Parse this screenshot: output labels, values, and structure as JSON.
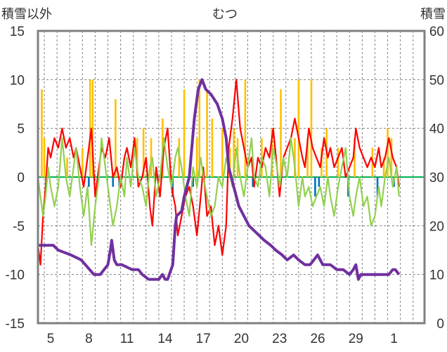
{
  "chart_data": {
    "type": "line",
    "title": "むつ",
    "left_axis_label": "積雪以外",
    "right_axis_label": "積雪",
    "ylim_left": [
      -15,
      15
    ],
    "ylim_right": [
      0,
      60
    ],
    "yticks_left": [
      "15",
      "10",
      "5",
      "0",
      "-5",
      "-10",
      "-15"
    ],
    "yticks_right": [
      "60",
      "50",
      "40",
      "30",
      "20",
      "10",
      "0"
    ],
    "x_days_range": [
      4.0,
      2.4
    ],
    "xticks": [
      "5",
      "8",
      "11",
      "14",
      "17",
      "20",
      "23",
      "26",
      "29",
      "1"
    ],
    "grid": true,
    "series": [
      {
        "color": "#ff0000",
        "axis": "left",
        "x": [
          4.0,
          4.2,
          4.4,
          4.6,
          4.8,
          5.0,
          5.3,
          5.6,
          5.9,
          6.2,
          6.5,
          6.8,
          7.0,
          7.3,
          7.6,
          7.9,
          8.2,
          8.5,
          8.8,
          9.0,
          9.3,
          9.6,
          9.9,
          10.2,
          10.5,
          10.8,
          11.0,
          11.3,
          11.6,
          11.9,
          12.2,
          12.5,
          12.8,
          13.0,
          13.3,
          13.6,
          13.9,
          14.2,
          14.5,
          14.8,
          15.0,
          15.3,
          15.6,
          15.9,
          16.2,
          16.5,
          16.8,
          17.0,
          17.3,
          17.6,
          17.9,
          18.2,
          18.5,
          18.8,
          19.0,
          19.3,
          19.6,
          19.9,
          20.2,
          20.5,
          20.8,
          21.0,
          21.3,
          21.6,
          21.9,
          22.2,
          22.5,
          22.8,
          23.0,
          23.3,
          23.6,
          23.9,
          24.2,
          24.5,
          24.8,
          25.0,
          25.3,
          25.6,
          25.9,
          26.2,
          26.5,
          26.8,
          27.0,
          27.3,
          27.6,
          27.9,
          28.2,
          28.5,
          28.8,
          29.0,
          29.3,
          29.6,
          29.9,
          30.2,
          30.5,
          30.8,
          31.0,
          31.3,
          31.6,
          31.9,
          32.2,
          32.4
        ],
        "values": [
          -7,
          -9,
          -4,
          -1,
          3,
          2,
          4,
          3,
          5,
          3,
          4,
          2,
          3,
          1,
          -1,
          2,
          5,
          -2,
          1,
          3,
          2,
          4,
          0,
          1,
          -1,
          2,
          3,
          1,
          4,
          -1,
          0,
          2,
          -3,
          -5,
          1,
          -2,
          3,
          5,
          -1,
          -3,
          -6,
          -4,
          -2,
          -1,
          -3,
          -6,
          -2,
          1,
          -4,
          -3,
          -7,
          -5,
          -8,
          -5,
          3,
          6,
          10,
          5,
          3,
          1,
          2,
          -1,
          2,
          1,
          3,
          2,
          5,
          1,
          -2,
          2,
          3,
          4,
          6,
          4,
          2,
          1,
          5,
          3,
          2,
          1,
          4,
          2,
          3,
          1,
          2,
          3,
          0,
          1,
          2,
          5,
          3,
          2,
          1,
          2,
          1,
          3,
          1,
          2,
          4,
          2,
          1,
          -1
        ]
      },
      {
        "color": "#92d050",
        "axis": "left",
        "x": [
          4.0,
          4.2,
          4.4,
          4.6,
          4.8,
          5.0,
          5.3,
          5.6,
          5.9,
          6.2,
          6.5,
          6.8,
          7.0,
          7.3,
          7.6,
          7.9,
          8.2,
          8.5,
          8.8,
          9.0,
          9.3,
          9.6,
          9.9,
          10.2,
          10.5,
          10.8,
          11.0,
          11.3,
          11.6,
          11.9,
          12.2,
          12.5,
          12.8,
          13.0,
          13.3,
          13.6,
          13.9,
          14.2,
          14.5,
          14.8,
          15.0,
          15.3,
          15.6,
          15.9,
          16.2,
          16.5,
          16.8,
          17.0,
          17.3,
          17.6,
          17.9,
          18.2,
          18.5,
          18.8,
          19.0,
          19.3,
          19.6,
          19.9,
          20.2,
          20.5,
          20.8,
          21.0,
          21.3,
          21.6,
          21.9,
          22.2,
          22.5,
          22.8,
          23.0,
          23.3,
          23.6,
          23.9,
          24.2,
          24.5,
          24.8,
          25.0,
          25.3,
          25.6,
          25.9,
          26.2,
          26.5,
          26.8,
          27.0,
          27.3,
          27.6,
          27.9,
          28.2,
          28.5,
          28.8,
          29.0,
          29.3,
          29.6,
          29.9,
          30.2,
          30.5,
          30.8,
          31.0,
          31.3,
          31.6,
          31.9,
          32.2,
          32.4
        ],
        "values": [
          0,
          -2,
          -4,
          -2,
          1,
          -1,
          -3,
          -1,
          4,
          0,
          -2,
          1,
          3,
          -1,
          -4,
          -1,
          -7,
          -3,
          0,
          4,
          1,
          -2,
          -5,
          -3,
          0,
          -2,
          2,
          -1,
          3,
          0,
          -1,
          -3,
          1,
          2,
          -2,
          0,
          4,
          1,
          -1,
          2,
          3,
          1,
          -2,
          -4,
          1,
          -1,
          2,
          0,
          -2,
          -4,
          -3,
          0,
          -1,
          2,
          1,
          -1,
          3,
          0,
          -2,
          1,
          4,
          0,
          -1,
          2,
          1,
          -2,
          3,
          1,
          -1,
          2,
          0,
          4,
          1,
          -3,
          0,
          -2,
          -1,
          -3,
          -2,
          -1,
          -3,
          0,
          -2,
          -4,
          -1,
          1,
          3,
          -2,
          -4,
          -2,
          0,
          -3,
          -2,
          -5,
          -4,
          -1,
          -3,
          0,
          2,
          -1,
          1,
          -2
        ]
      },
      {
        "color": "#7030a0",
        "axis": "right",
        "x": [
          4.0,
          5.2,
          5.6,
          6.6,
          7.4,
          8.4,
          8.9,
          9.2,
          9.5,
          9.7,
          9.8,
          10.0,
          10.2,
          10.6,
          11.4,
          11.9,
          12.2,
          12.7,
          13.5,
          13.8,
          14.0,
          14.2,
          14.6,
          14.8,
          14.9,
          15.3,
          15.5,
          15.9,
          16.3,
          16.6,
          16.9,
          17.2,
          17.6,
          18.1,
          18.5,
          18.8,
          19.0,
          19.4,
          19.8,
          20.2,
          20.6,
          21.0,
          21.4,
          21.8,
          22.3,
          22.7,
          23.2,
          23.6,
          24.1,
          24.5,
          25.0,
          25.4,
          25.7,
          26.0,
          26.4,
          27.0,
          27.5,
          28.0,
          28.5,
          28.8,
          29.0,
          29.2,
          29.4,
          29.6,
          30.2,
          31.0,
          31.6,
          31.9,
          32.1,
          32.4
        ],
        "values": [
          16,
          16,
          15,
          14,
          13,
          10,
          10,
          11,
          12,
          15,
          17,
          13,
          12,
          12,
          11,
          11,
          10,
          9,
          9,
          10,
          9,
          9,
          12,
          20,
          22,
          23,
          26,
          30,
          42,
          48,
          50,
          48,
          47,
          45,
          42,
          38,
          32,
          28,
          24,
          22,
          20,
          19,
          18,
          17,
          16,
          15,
          14,
          13,
          14,
          13,
          12,
          12,
          13,
          14,
          12,
          12,
          11,
          11,
          10,
          11,
          12,
          9,
          10,
          10,
          10,
          10,
          10,
          11,
          11,
          10
        ]
      }
    ],
    "bars": {
      "axis": "left",
      "positive_color": "#ffc000",
      "negative_color": "#0070c0",
      "x": [
        4.3,
        4.5,
        6.3,
        7.5,
        8.0,
        8.1,
        8.3,
        9.9,
        10.1,
        10.4,
        11.8,
        12.3,
        12.9,
        13.8,
        14.6,
        15.1,
        15.5,
        16.2,
        16.5,
        16.7,
        17.3,
        17.7,
        18.5,
        19.1,
        19.4,
        19.7,
        20.3,
        20.9,
        21.6,
        22.4,
        23.1,
        24.2,
        24.5,
        25.2,
        25.5,
        25.8,
        26.1,
        26.3,
        26.7,
        27.6,
        28.4,
        28.9,
        30.3,
        30.7,
        31.2,
        31.5,
        31.8,
        32.0
      ],
      "values": [
        9,
        4,
        2,
        3,
        -1,
        10,
        10,
        -1,
        8,
        -1,
        4,
        5,
        4,
        6,
        -2,
        4,
        9,
        -1,
        4,
        10,
        9,
        6,
        5,
        3,
        5,
        4,
        10,
        -1,
        4,
        5,
        9,
        4,
        10,
        4,
        10,
        -2,
        -1,
        3,
        5,
        3,
        -2,
        4,
        3,
        -2,
        2,
        5,
        4,
        -1
      ]
    }
  }
}
